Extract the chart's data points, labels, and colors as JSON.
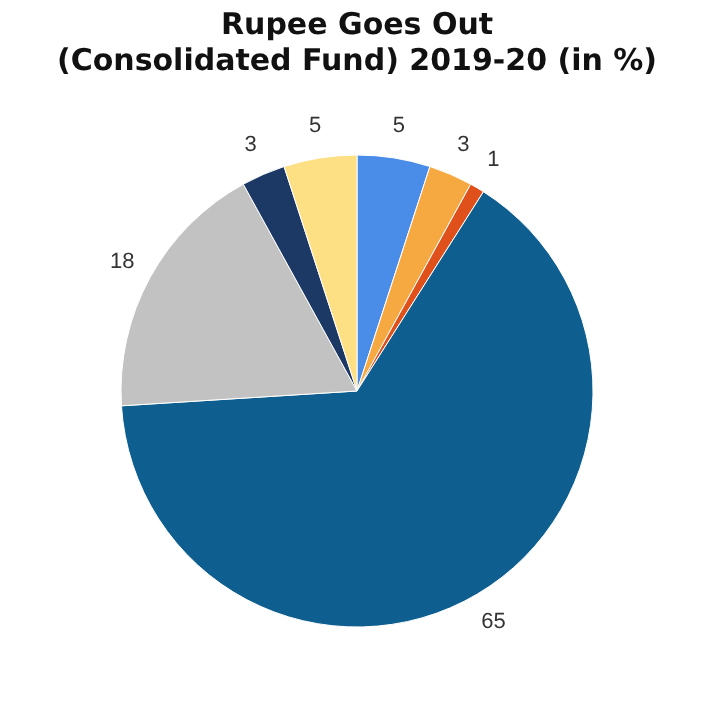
{
  "chart_data": {
    "type": "pie",
    "title": "Rupee Goes Out",
    "subtitle": "(Consolidated Fund) 2019-20 (in %)",
    "categories": [
      null,
      null,
      null,
      null,
      null,
      null,
      null
    ],
    "values": [
      5,
      3,
      1,
      65,
      18,
      3,
      5
    ],
    "colors": [
      "#4a8de8",
      "#f7a941",
      "#e0501a",
      "#0e5f8f",
      "#c2c2c2",
      "#1c3865",
      "#fde084"
    ],
    "data_labels": true,
    "legend": false
  }
}
